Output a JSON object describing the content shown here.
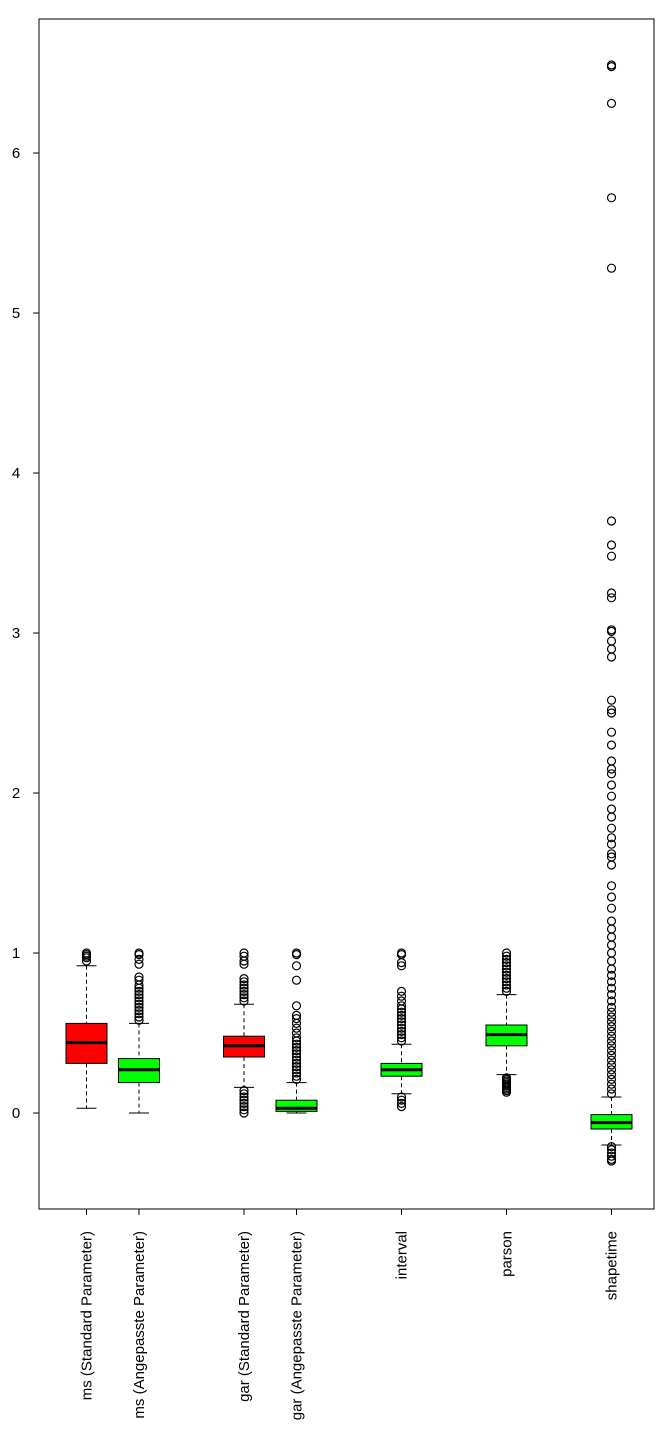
{
  "chart_data": {
    "type": "boxplot",
    "title": "",
    "xlabel": "",
    "ylabel": "",
    "ylim": [
      -0.6,
      6.85
    ],
    "yticks": [
      0,
      1,
      2,
      3,
      4,
      5,
      6
    ],
    "colors": {
      "red": "#ff0000",
      "green": "#00ff00",
      "outline": "#000000"
    },
    "boxes": [
      {
        "label": "ms (Standard Parameter)",
        "pos": 1,
        "color": "#ff0000",
        "whisker_low": 0.03,
        "q1": 0.31,
        "median": 0.44,
        "q3": 0.56,
        "whisker_high": 0.92,
        "outliers": [
          0.95,
          0.97,
          0.98,
          0.99,
          1.0
        ]
      },
      {
        "label": "ms (Angepasste Parameter)",
        "pos": 2,
        "color": "#00ff00",
        "whisker_low": 0.0,
        "q1": 0.19,
        "median": 0.27,
        "q3": 0.34,
        "whisker_high": 0.56,
        "outliers": [
          0.58,
          0.6,
          0.62,
          0.64,
          0.66,
          0.68,
          0.7,
          0.72,
          0.74,
          0.76,
          0.78,
          0.8,
          0.83,
          0.85,
          0.93,
          0.96,
          0.99,
          1.0
        ]
      },
      {
        "label": "gar (Standard Parameter)",
        "pos": 4,
        "color": "#ff0000",
        "whisker_low": 0.16,
        "q1": 0.35,
        "median": 0.42,
        "q3": 0.48,
        "whisker_high": 0.68,
        "outliers": [
          0.0,
          0.02,
          0.04,
          0.06,
          0.08,
          0.1,
          0.12,
          0.14,
          0.7,
          0.72,
          0.74,
          0.76,
          0.78,
          0.8,
          0.82,
          0.84,
          0.93,
          0.95,
          0.98,
          1.0
        ]
      },
      {
        "label": "gar (Angepasste Parameter)",
        "pos": 5,
        "color": "#00ff00",
        "whisker_low": 0.0,
        "q1": 0.01,
        "median": 0.03,
        "q3": 0.08,
        "whisker_high": 0.19,
        "outliers": [
          0.21,
          0.23,
          0.25,
          0.27,
          0.29,
          0.31,
          0.33,
          0.35,
          0.37,
          0.39,
          0.41,
          0.43,
          0.45,
          0.47,
          0.5,
          0.53,
          0.56,
          0.59,
          0.61,
          0.67,
          0.83,
          0.92,
          0.99,
          1.0
        ]
      },
      {
        "label": "interval",
        "pos": 7,
        "color": "#00ff00",
        "whisker_low": 0.12,
        "q1": 0.23,
        "median": 0.27,
        "q3": 0.31,
        "whisker_high": 0.43,
        "outliers": [
          0.04,
          0.06,
          0.08,
          0.1,
          0.45,
          0.47,
          0.49,
          0.51,
          0.53,
          0.55,
          0.57,
          0.59,
          0.61,
          0.63,
          0.65,
          0.67,
          0.7,
          0.73,
          0.76,
          0.92,
          0.94,
          0.99,
          1.0
        ]
      },
      {
        "label": "parson",
        "pos": 9,
        "color": "#00ff00",
        "whisker_low": 0.24,
        "q1": 0.42,
        "median": 0.49,
        "q3": 0.55,
        "whisker_high": 0.74,
        "outliers": [
          0.13,
          0.14,
          0.15,
          0.16,
          0.17,
          0.18,
          0.19,
          0.2,
          0.21,
          0.22,
          0.76,
          0.78,
          0.8,
          0.82,
          0.84,
          0.86,
          0.88,
          0.9,
          0.92,
          0.94,
          0.96,
          0.98,
          1.0
        ]
      },
      {
        "label": "shapetime",
        "pos": 11,
        "color": "#00ff00",
        "whisker_low": -0.2,
        "q1": -0.1,
        "median": -0.06,
        "q3": -0.01,
        "whisker_high": 0.1,
        "outliers": [
          -0.3,
          -0.29,
          -0.27,
          -0.25,
          -0.23,
          -0.21,
          0.12,
          0.15,
          0.18,
          0.21,
          0.24,
          0.27,
          0.3,
          0.33,
          0.36,
          0.39,
          0.42,
          0.45,
          0.48,
          0.51,
          0.54,
          0.57,
          0.6,
          0.63,
          0.66,
          0.7,
          0.74,
          0.78,
          0.82,
          0.86,
          0.9,
          0.95,
          1.0,
          1.05,
          1.1,
          1.15,
          1.2,
          1.28,
          1.35,
          1.42,
          1.55,
          1.6,
          1.62,
          1.68,
          1.72,
          1.78,
          1.85,
          1.9,
          1.98,
          2.05,
          2.12,
          2.15,
          2.2,
          2.3,
          2.38,
          2.5,
          2.52,
          2.58,
          2.85,
          2.9,
          2.95,
          3.01,
          3.02,
          3.22,
          3.25,
          3.48,
          3.55,
          3.7,
          5.28,
          5.72,
          6.31,
          6.54,
          6.55
        ]
      }
    ]
  }
}
